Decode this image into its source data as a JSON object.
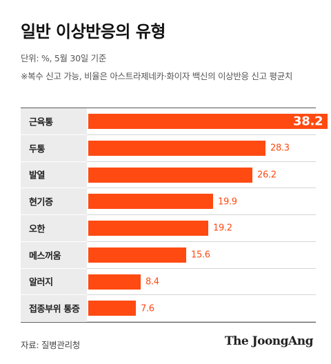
{
  "title": "일반 이상반응의 유형",
  "unit_note": "단위: %, 5월 30일 기준",
  "footnote": "※복수 신고 가능, 비율은 아스트라제네카·화이자 백신의 이상반응 신고 평균치",
  "source": "자료: 질병관리청",
  "brand": "The JoongAng",
  "colors": {
    "bar": "#ff4a12",
    "label_bg": "#ececec"
  },
  "chart_data": {
    "type": "bar",
    "orientation": "horizontal",
    "title": "일반 이상반응의 유형",
    "categories": [
      "근육통",
      "두통",
      "발열",
      "현기증",
      "오한",
      "메스꺼움",
      "알러지",
      "접종부위 통증"
    ],
    "values": [
      38.2,
      28.3,
      26.2,
      19.9,
      19.2,
      15.6,
      8.4,
      7.6
    ],
    "value_labels": [
      "38.2",
      "28.3",
      "26.2",
      "19.9",
      "19.2",
      "15.6",
      "8.4",
      "7.6"
    ],
    "xlim": [
      0,
      38.2
    ],
    "grid": false,
    "legend": "none"
  }
}
